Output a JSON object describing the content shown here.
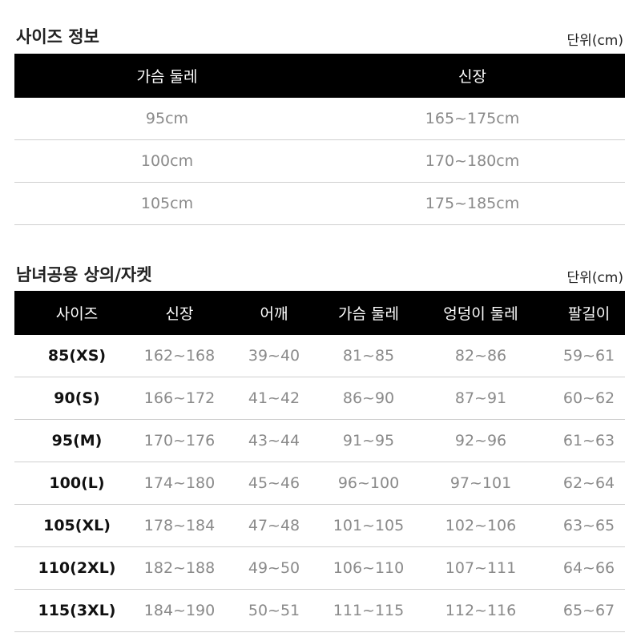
{
  "size_info": {
    "title": "사이즈 정보",
    "unit": "단위(cm)",
    "headers": [
      "가슴 둘레",
      "신장"
    ],
    "rows": [
      [
        "95cm",
        "165~175cm"
      ],
      [
        "100cm",
        "170~180cm"
      ],
      [
        "105cm",
        "175~185cm"
      ]
    ]
  },
  "unisex_tops": {
    "title": "남녀공용 상의/자켓",
    "unit": "단위(cm)",
    "headers": [
      "사이즈",
      "신장",
      "어깨",
      "가슴 둘레",
      "엉덩이 둘레",
      "팔길이"
    ],
    "rows": [
      [
        "85(XS)",
        "162~168",
        "39~40",
        "81~85",
        "82~86",
        "59~61"
      ],
      [
        "90(S)",
        "166~172",
        "41~42",
        "86~90",
        "87~91",
        "60~62"
      ],
      [
        "95(M)",
        "170~176",
        "43~44",
        "91~95",
        "92~96",
        "61~63"
      ],
      [
        "100(L)",
        "174~180",
        "45~46",
        "96~100",
        "97~101",
        "62~64"
      ],
      [
        "105(XL)",
        "178~184",
        "47~48",
        "101~105",
        "102~106",
        "63~65"
      ],
      [
        "110(2XL)",
        "182~188",
        "49~50",
        "106~110",
        "107~111",
        "64~66"
      ],
      [
        "115(3XL)",
        "184~190",
        "50~51",
        "111~115",
        "112~116",
        "65~67"
      ]
    ]
  }
}
